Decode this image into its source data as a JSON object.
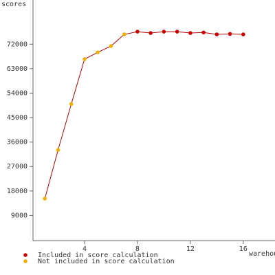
{
  "chart_data": {
    "type": "line",
    "y_label": "scores",
    "x_label": "warehouses",
    "x": [
      1,
      2,
      3,
      4,
      5,
      6,
      7,
      8,
      9,
      10,
      11,
      12,
      13,
      14,
      15,
      16
    ],
    "values": [
      15200,
      33100,
      50000,
      66500,
      69000,
      71300,
      75600,
      76600,
      76100,
      76600,
      76600,
      76100,
      76300,
      75600,
      75800,
      75600
    ],
    "included": [
      false,
      false,
      false,
      false,
      false,
      false,
      false,
      true,
      true,
      true,
      true,
      true,
      true,
      true,
      true,
      true
    ],
    "line_color": "#b00000",
    "legend": [
      {
        "name": "Included in score calculation",
        "color": "#cc0000"
      },
      {
        "name": "Not included in score calculation",
        "color": "#f0b000"
      }
    ],
    "xlim": [
      0,
      18.4
    ],
    "xticks": [
      4,
      8,
      12,
      16
    ],
    "ylim": [
      0,
      88000
    ],
    "yticks": [
      9000,
      18000,
      27000,
      36000,
      45000,
      54000,
      63000,
      72000
    ]
  }
}
